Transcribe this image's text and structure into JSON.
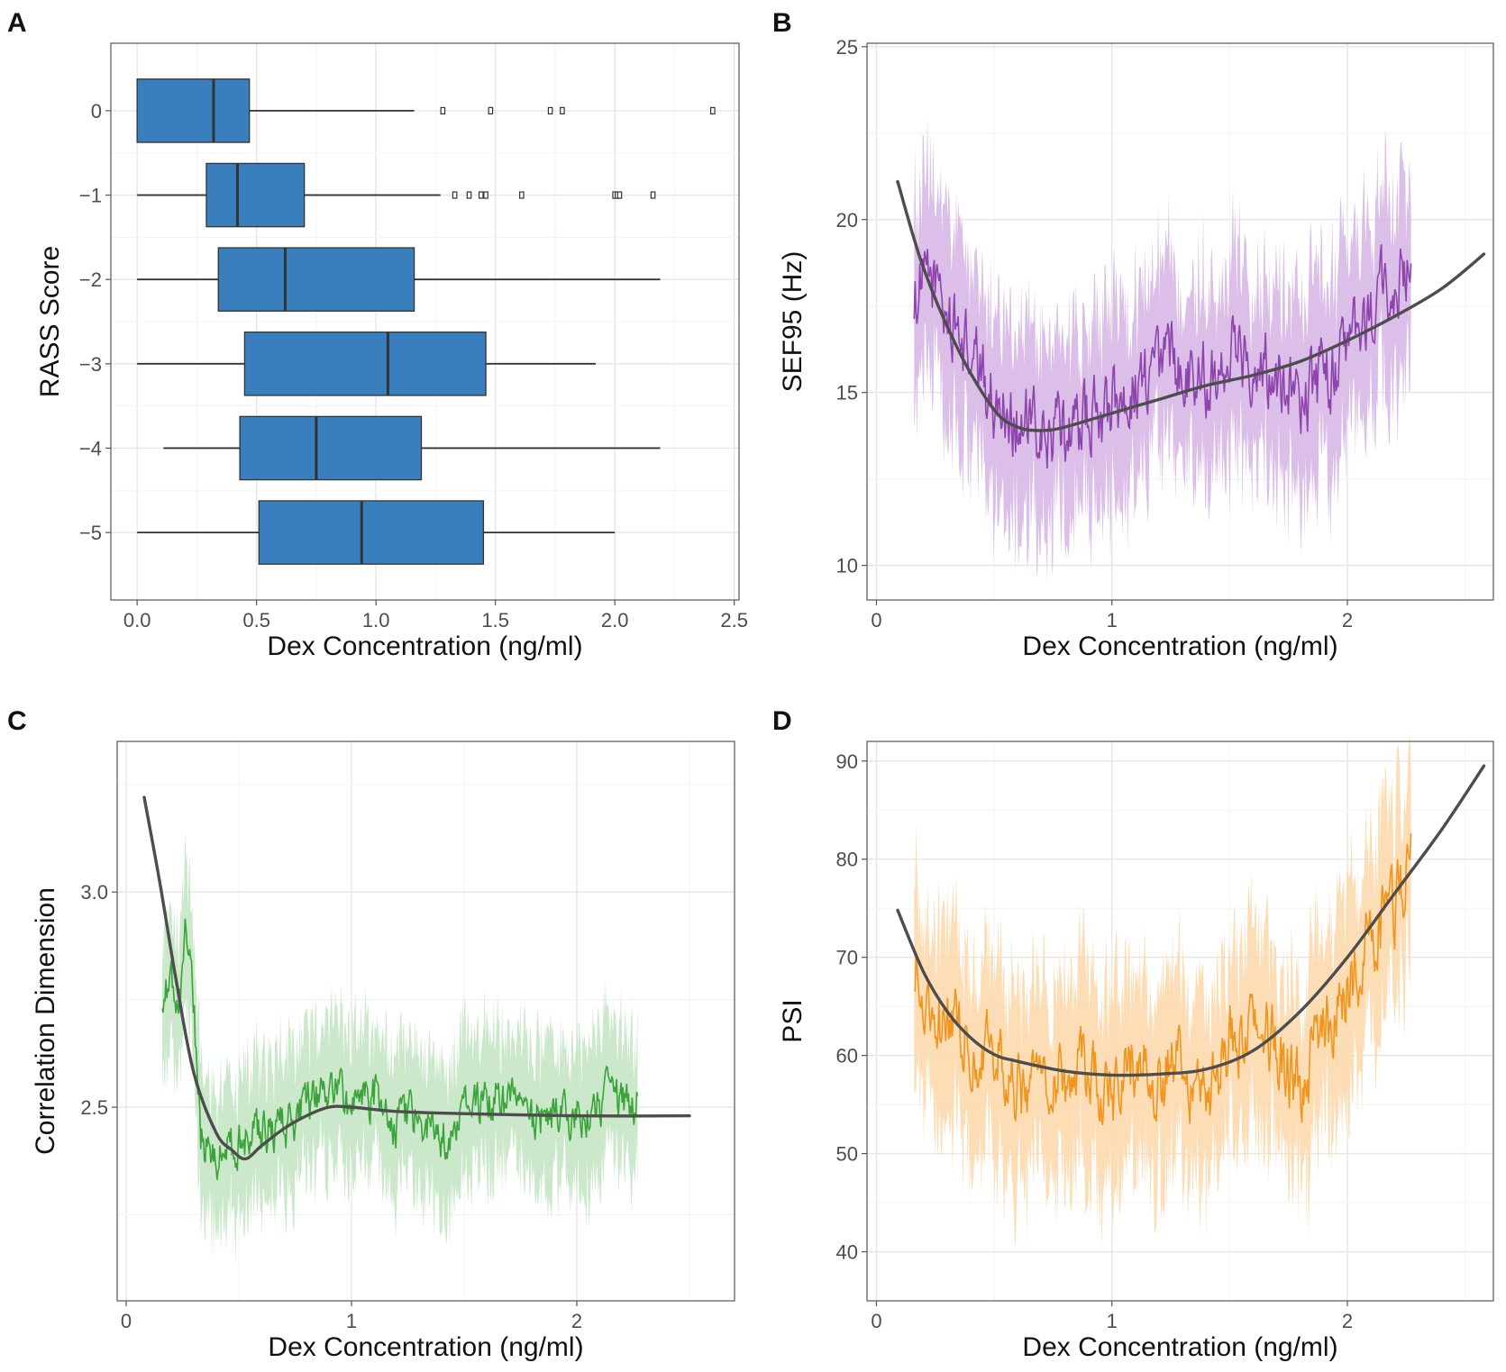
{
  "figure": {
    "panels": [
      "A",
      "B",
      "C",
      "D"
    ]
  },
  "chart_data": [
    {
      "panel": "A",
      "type": "boxplot",
      "orientation": "horizontal",
      "xlabel": "Dex Concentration (ng/ml)",
      "ylabel": "RASS Score",
      "xlim": [
        -0.11,
        2.52
      ],
      "x_ticks": [
        0.0,
        0.5,
        1.0,
        1.5,
        2.0,
        2.5
      ],
      "x_tick_labels": [
        "0.0",
        "0.5",
        "1.0",
        "1.5",
        "2.0",
        "2.5"
      ],
      "categories": [
        "0",
        "−1",
        "−2",
        "−3",
        "−4",
        "−5"
      ],
      "box_color": "#3a7fbd",
      "boxes": [
        {
          "category": "0",
          "min": 0.0,
          "q1": 0.0,
          "median": 0.32,
          "q3": 0.47,
          "max": 1.16,
          "outliers": [
            1.28,
            1.48,
            1.73,
            1.78,
            2.41
          ]
        },
        {
          "category": "−1",
          "min": 0.0,
          "q1": 0.29,
          "median": 0.42,
          "q3": 0.7,
          "max": 1.27,
          "outliers": [
            1.33,
            1.39,
            1.44,
            1.46,
            1.61,
            2.0,
            2.01,
            2.02,
            2.16
          ]
        },
        {
          "category": "−2",
          "min": 0.0,
          "q1": 0.34,
          "median": 0.62,
          "q3": 1.16,
          "max": 2.19,
          "outliers": []
        },
        {
          "category": "−3",
          "min": 0.0,
          "q1": 0.45,
          "median": 1.05,
          "q3": 1.46,
          "max": 1.92,
          "outliers": []
        },
        {
          "category": "−4",
          "min": 0.11,
          "q1": 0.43,
          "median": 0.75,
          "q3": 1.19,
          "max": 2.19,
          "outliers": []
        },
        {
          "category": "−5",
          "min": 0.0,
          "q1": 0.51,
          "median": 0.94,
          "q3": 1.45,
          "max": 2.0,
          "outliers": []
        }
      ]
    },
    {
      "panel": "B",
      "type": "line",
      "xlabel": "Dex Concentration (ng/ml)",
      "ylabel": "SEF95 (Hz)",
      "xlim": [
        -0.04,
        2.62
      ],
      "ylim": [
        9.0,
        25.1
      ],
      "x_ticks": [
        0,
        1,
        2
      ],
      "x_tick_labels": [
        "0",
        "1",
        "2"
      ],
      "y_ticks": [
        10,
        15,
        20,
        25
      ],
      "y_tick_labels": [
        "10",
        "15",
        "20",
        "25"
      ],
      "line_color": "#8e44ad",
      "band_color": "#d7b8e5",
      "fit_color": "#4d4d4d",
      "raw_x_range": [
        0.16,
        2.27
      ],
      "anchors": {
        "x": [
          0.16,
          0.25,
          0.3,
          0.38,
          0.5,
          0.6,
          0.7,
          0.8,
          0.9,
          1.0,
          1.1,
          1.2,
          1.3,
          1.4,
          1.5,
          1.6,
          1.7,
          1.8,
          1.9,
          2.0,
          2.1,
          2.2,
          2.27
        ],
        "y": [
          17.9,
          18.3,
          17.2,
          16.3,
          14.7,
          14.2,
          13.6,
          13.9,
          14.3,
          14.5,
          15.2,
          15.8,
          15.9,
          15.5,
          16.3,
          16.0,
          15.6,
          14.9,
          15.4,
          16.1,
          17.2,
          18.3,
          18.4
        ]
      },
      "band_halfwidth": 2.7,
      "noise": 0.9,
      "fit": {
        "x": [
          0.09,
          0.2,
          0.35,
          0.5,
          0.6,
          0.7,
          0.8,
          1.0,
          1.2,
          1.4,
          1.6,
          1.8,
          2.0,
          2.2,
          2.4,
          2.58
        ],
        "y": [
          21.1,
          18.6,
          16.2,
          14.5,
          14.0,
          13.9,
          14.0,
          14.4,
          14.8,
          15.2,
          15.5,
          15.9,
          16.5,
          17.2,
          18.0,
          19.0
        ]
      }
    },
    {
      "panel": "C",
      "type": "line",
      "xlabel": "Dex Concentration (ng/ml)",
      "ylabel": "Correlation Dimension",
      "xlim": [
        -0.04,
        2.7
      ],
      "ylim": [
        2.05,
        3.35
      ],
      "x_ticks": [
        0,
        1,
        2
      ],
      "x_tick_labels": [
        "0",
        "1",
        "2"
      ],
      "y_ticks": [
        2.5,
        3.0
      ],
      "y_tick_labels": [
        "2.5",
        "3.0"
      ],
      "line_color": "#3aa33a",
      "band_color": "#c5e6c5",
      "fit_color": "#4d4d4d",
      "raw_x_range": [
        0.16,
        2.27
      ],
      "anchors": {
        "x": [
          0.16,
          0.2,
          0.24,
          0.26,
          0.3,
          0.33,
          0.4,
          0.5,
          0.6,
          0.7,
          0.8,
          0.9,
          1.0,
          1.1,
          1.2,
          1.3,
          1.4,
          1.6,
          1.8,
          2.0,
          2.2,
          2.27
        ],
        "y": [
          2.73,
          2.79,
          2.76,
          2.93,
          2.74,
          2.42,
          2.4,
          2.42,
          2.45,
          2.45,
          2.5,
          2.55,
          2.5,
          2.53,
          2.46,
          2.48,
          2.42,
          2.53,
          2.47,
          2.49,
          2.52,
          2.51
        ]
      },
      "band_halfwidth": 0.16,
      "noise": 0.045,
      "fit": {
        "x": [
          0.08,
          0.15,
          0.22,
          0.3,
          0.4,
          0.47,
          0.53,
          0.6,
          0.7,
          0.8,
          0.9,
          1.0,
          1.2,
          1.5,
          2.0,
          2.5
        ],
        "y": [
          3.22,
          3.02,
          2.8,
          2.58,
          2.44,
          2.4,
          2.38,
          2.41,
          2.45,
          2.48,
          2.5,
          2.5,
          2.49,
          2.485,
          2.48,
          2.48
        ]
      }
    },
    {
      "panel": "D",
      "type": "line",
      "xlabel": "Dex Concentration (ng/ml)",
      "ylabel": "PSI",
      "xlim": [
        -0.04,
        2.62
      ],
      "ylim": [
        35,
        92
      ],
      "x_ticks": [
        0,
        1,
        2
      ],
      "x_tick_labels": [
        "0",
        "1",
        "2"
      ],
      "y_ticks": [
        40,
        50,
        60,
        70,
        80,
        90
      ],
      "y_tick_labels": [
        "40",
        "50",
        "60",
        "70",
        "80",
        "90"
      ],
      "line_color": "#f0961f",
      "band_color": "#fcd9ad",
      "fit_color": "#4d4d4d",
      "raw_x_range": [
        0.16,
        2.27
      ],
      "anchors": {
        "x": [
          0.16,
          0.22,
          0.3,
          0.35,
          0.4,
          0.45,
          0.5,
          0.6,
          0.7,
          0.8,
          0.9,
          1.0,
          1.1,
          1.2,
          1.3,
          1.4,
          1.5,
          1.6,
          1.7,
          1.8,
          1.9,
          2.0,
          2.1,
          2.2,
          2.27
        ],
        "y": [
          69,
          67,
          62,
          64,
          60,
          62,
          61,
          56,
          60,
          58,
          59,
          56,
          60,
          58,
          59,
          56,
          61,
          64,
          61,
          56,
          63,
          67,
          72,
          75,
          79
        ]
      },
      "band_halfwidth": 9.5,
      "noise": 3.2,
      "fit": {
        "x": [
          0.09,
          0.2,
          0.3,
          0.4,
          0.5,
          0.6,
          0.8,
          1.0,
          1.2,
          1.4,
          1.6,
          1.8,
          2.0,
          2.2,
          2.4,
          2.58
        ],
        "y": [
          74.8,
          68.5,
          64.5,
          61.8,
          60.1,
          59.4,
          58.4,
          58.0,
          58.1,
          58.6,
          60.5,
          64.5,
          70.0,
          76.5,
          83.0,
          89.5
        ]
      }
    }
  ]
}
